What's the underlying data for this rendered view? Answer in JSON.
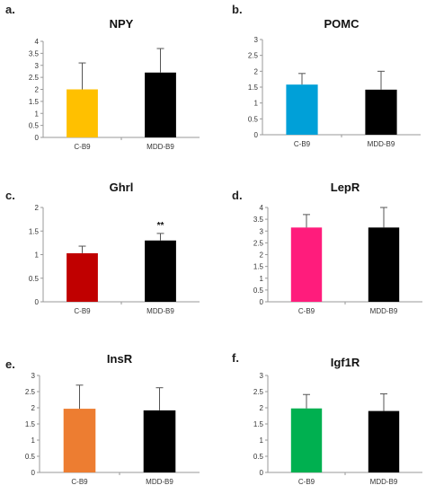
{
  "chart_data": [
    {
      "panel": "a.",
      "type": "bar",
      "title": "NPY",
      "xlabel": "",
      "ylabel": "",
      "categories": [
        "C-B9",
        "MDD-B9"
      ],
      "values": [
        2.0,
        2.7
      ],
      "errors": [
        1.1,
        1.0
      ],
      "colors": [
        "#FFC000",
        "#000000"
      ],
      "ylim": [
        0,
        4
      ],
      "yticks": [
        "0",
        "0.5",
        "1",
        "1.5",
        "2",
        "2.5",
        "3",
        "3.5",
        "4"
      ],
      "annotations": []
    },
    {
      "panel": "b.",
      "type": "bar",
      "title": "POMC",
      "xlabel": "",
      "ylabel": "",
      "categories": [
        "C-B9",
        "MDD-B9"
      ],
      "values": [
        1.58,
        1.42
      ],
      "errors": [
        0.35,
        0.58
      ],
      "colors": [
        "#00A0D8",
        "#000000"
      ],
      "ylim": [
        0,
        3
      ],
      "yticks": [
        "0",
        "0.5",
        "1",
        "1.5",
        "2",
        "2.5",
        "3"
      ],
      "annotations": []
    },
    {
      "panel": "c.",
      "type": "bar",
      "title": "Ghrl",
      "xlabel": "",
      "ylabel": "",
      "categories": [
        "C-B9",
        "MDD-B9"
      ],
      "values": [
        1.03,
        1.3
      ],
      "errors": [
        0.15,
        0.15
      ],
      "colors": [
        "#C00000",
        "#000000"
      ],
      "ylim": [
        0,
        2
      ],
      "yticks": [
        "0",
        "0.5",
        "1",
        "1.5",
        "2"
      ],
      "annotations": [
        {
          "category": "MDD-B9",
          "text": "**"
        }
      ]
    },
    {
      "panel": "d.",
      "type": "bar",
      "title": "LepR",
      "xlabel": "",
      "ylabel": "",
      "categories": [
        "C-B9",
        "MDD-B9"
      ],
      "values": [
        3.15,
        3.15
      ],
      "errors": [
        0.55,
        0.85
      ],
      "colors": [
        "#FF1C7C",
        "#000000"
      ],
      "ylim": [
        0,
        4
      ],
      "yticks": [
        "0",
        "0.5",
        "1",
        "1.5",
        "2",
        "2.5",
        "3",
        "3.5",
        "4"
      ],
      "annotations": []
    },
    {
      "panel": "e.",
      "type": "bar",
      "title": "InsR",
      "xlabel": "",
      "ylabel": "",
      "categories": [
        "C-B9",
        "MDD-B9"
      ],
      "values": [
        1.97,
        1.92
      ],
      "errors": [
        0.73,
        0.7
      ],
      "colors": [
        "#ED7D31",
        "#000000"
      ],
      "ylim": [
        0,
        3
      ],
      "yticks": [
        "0",
        "0.5",
        "1",
        "1.5",
        "2",
        "2.5",
        "3"
      ],
      "annotations": []
    },
    {
      "panel": "f.",
      "type": "bar",
      "title": "Igf1R",
      "xlabel": "",
      "ylabel": "",
      "categories": [
        "C-B9",
        "MDD-B9"
      ],
      "values": [
        1.98,
        1.9
      ],
      "errors": [
        0.43,
        0.53
      ],
      "colors": [
        "#00B050",
        "#000000"
      ],
      "ylim": [
        0,
        3
      ],
      "yticks": [
        "0",
        "0.5",
        "1",
        "1.5",
        "2",
        "2.5",
        "3"
      ],
      "annotations": []
    }
  ]
}
